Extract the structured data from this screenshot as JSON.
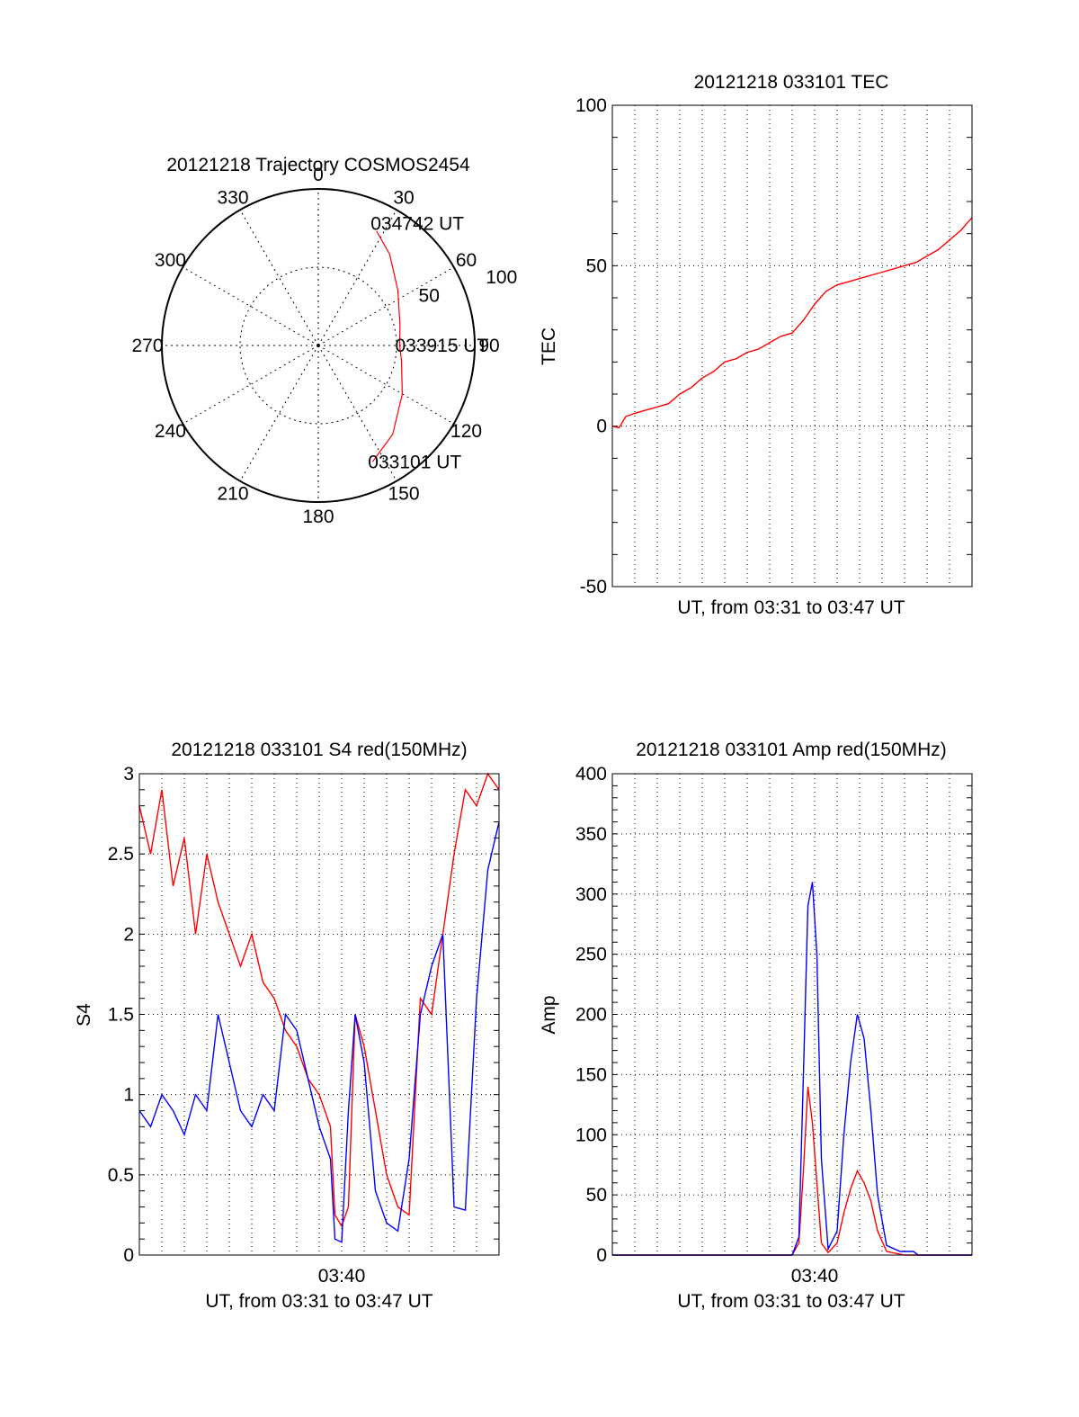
{
  "figure": {
    "colors": {
      "red": "#ff0000",
      "blue": "#0000ff",
      "frame": "#000000",
      "grid": "#000000"
    }
  },
  "chart_data": [
    {
      "type": "polar",
      "title": "20121218 Trajectory COSMOS2454",
      "angle_labels": [
        "0",
        "30",
        "60",
        "90",
        "120",
        "150",
        "180",
        "210",
        "240",
        "270",
        "300",
        "330"
      ],
      "radial_labels": [
        "50",
        "100"
      ],
      "radial_max": 100,
      "grid": true,
      "series": [
        {
          "color": "#ff0000",
          "points": [
            {
              "azimuth": 155,
              "elevation": 18
            },
            {
              "azimuth": 140,
              "elevation": 26
            },
            {
              "azimuth": 120,
              "elevation": 38
            },
            {
              "azimuth": 100,
              "elevation": 46
            },
            {
              "azimuth": 90,
              "elevation": 48
            },
            {
              "azimuth": 75,
              "elevation": 46
            },
            {
              "azimuth": 55,
              "elevation": 38
            },
            {
              "azimuth": 38,
              "elevation": 26
            },
            {
              "azimuth": 27,
              "elevation": 18
            }
          ]
        }
      ],
      "annotations": [
        {
          "text": "034742 UT",
          "azimuth": 25,
          "elevation": 14
        },
        {
          "text": "033915 UT",
          "azimuth": 90,
          "elevation": 48
        },
        {
          "text": "033101 UT",
          "azimuth": 155,
          "elevation": 18
        }
      ]
    },
    {
      "type": "line",
      "title": "20121218 033101 TEC",
      "xlabel": "UT, from 03:31 to 03:47 UT",
      "ylabel": "TEC",
      "xlim": [
        0,
        16
      ],
      "ylim": [
        -50,
        100
      ],
      "yticks": [
        "100",
        "50",
        "0",
        "-50"
      ],
      "ytick_values": [
        100,
        50,
        0,
        -50
      ],
      "grid": true,
      "series": [
        {
          "color": "#ff0000",
          "x": [
            0,
            0.3,
            0.6,
            1.0,
            1.5,
            2.0,
            2.5,
            3.0,
            3.5,
            4.0,
            4.5,
            5.0,
            5.5,
            6.0,
            6.5,
            7.0,
            7.5,
            8.0,
            8.5,
            9.0,
            9.5,
            10.0,
            10.5,
            11.0,
            11.5,
            12.0,
            12.5,
            13.0,
            13.5,
            14.0,
            14.5,
            15.0,
            15.5,
            16.0
          ],
          "y": [
            0,
            -0.5,
            3,
            4,
            5,
            6,
            7,
            10,
            12,
            15,
            17,
            20,
            21,
            23,
            24,
            26,
            28,
            29,
            33,
            38,
            42,
            44,
            45,
            46,
            47,
            48,
            49,
            50,
            51,
            53,
            55,
            58,
            61,
            65
          ]
        }
      ]
    },
    {
      "type": "line",
      "title": "20121218 033101 S4 red(150MHz)",
      "xlabel": "UT, from 03:31 to 03:47 UT",
      "ylabel": "S4",
      "xlim": [
        0,
        16
      ],
      "ylim": [
        0,
        3
      ],
      "xticks": [
        "03:40"
      ],
      "xtick_values": [
        9
      ],
      "yticks": [
        "3",
        "2.5",
        "2",
        "1.5",
        "1",
        "0.5",
        "0"
      ],
      "ytick_values": [
        3,
        2.5,
        2,
        1.5,
        1,
        0.5,
        0
      ],
      "grid": true,
      "series": [
        {
          "color": "#ff0000",
          "x": [
            0,
            0.5,
            1.0,
            1.5,
            2.0,
            2.5,
            3.0,
            3.5,
            4.0,
            4.5,
            5.0,
            5.5,
            6.0,
            6.5,
            7.0,
            7.5,
            8.0,
            8.5,
            8.7,
            9.0,
            9.3,
            9.6,
            10.0,
            10.5,
            11.0,
            11.5,
            12.0,
            12.5,
            13.0,
            13.5,
            14.0,
            14.5,
            15.0,
            15.5,
            16.0
          ],
          "y": [
            2.8,
            2.5,
            2.9,
            2.3,
            2.6,
            2.0,
            2.5,
            2.2,
            2.0,
            1.8,
            2.0,
            1.7,
            1.6,
            1.4,
            1.3,
            1.1,
            1.0,
            0.8,
            0.25,
            0.18,
            0.3,
            1.5,
            1.3,
            0.9,
            0.5,
            0.3,
            0.25,
            1.6,
            1.5,
            2.0,
            2.5,
            2.9,
            2.8,
            3.0,
            2.9
          ]
        },
        {
          "color": "#0000ff",
          "x": [
            0,
            0.5,
            1.0,
            1.5,
            2.0,
            2.5,
            3.0,
            3.5,
            4.0,
            4.5,
            5.0,
            5.5,
            6.0,
            6.5,
            7.0,
            7.5,
            8.0,
            8.5,
            8.7,
            9.0,
            9.3,
            9.6,
            10.0,
            10.5,
            11.0,
            11.5,
            12.0,
            12.5,
            13.0,
            13.5,
            14.0,
            14.5,
            15.0,
            15.5,
            16.0
          ],
          "y": [
            0.9,
            0.8,
            1.0,
            0.9,
            0.75,
            1.0,
            0.9,
            1.5,
            1.2,
            0.9,
            0.8,
            1.0,
            0.9,
            1.5,
            1.4,
            1.1,
            0.8,
            0.6,
            0.1,
            0.08,
            0.9,
            1.5,
            1.2,
            0.4,
            0.2,
            0.15,
            0.6,
            1.5,
            1.8,
            2.0,
            0.3,
            0.28,
            1.6,
            2.4,
            2.7
          ]
        }
      ]
    },
    {
      "type": "line",
      "title": "20121218 033101 Amp red(150MHz)",
      "xlabel": "UT, from 03:31 to 03:47 UT",
      "ylabel": "Amp",
      "xlim": [
        0,
        16
      ],
      "ylim": [
        0,
        400
      ],
      "xticks": [
        "03:40"
      ],
      "xtick_values": [
        9
      ],
      "yticks": [
        "400",
        "350",
        "300",
        "250",
        "200",
        "150",
        "100",
        "50",
        "0"
      ],
      "ytick_values": [
        400,
        350,
        300,
        250,
        200,
        150,
        100,
        50,
        0
      ],
      "grid": true,
      "series": [
        {
          "color": "#ff0000",
          "x": [
            0,
            4.0,
            8.0,
            8.3,
            8.5,
            8.7,
            8.9,
            9.1,
            9.3,
            9.6,
            10.0,
            10.3,
            10.6,
            10.9,
            11.2,
            11.5,
            11.8,
            12.2,
            13.0,
            16.0
          ],
          "y": [
            0,
            0,
            0,
            10,
            70,
            140,
            110,
            60,
            10,
            2,
            10,
            35,
            55,
            70,
            60,
            45,
            20,
            3,
            0,
            0
          ]
        },
        {
          "color": "#0000ff",
          "x": [
            0,
            4.0,
            8.0,
            8.3,
            8.5,
            8.7,
            8.9,
            9.1,
            9.3,
            9.6,
            10.0,
            10.3,
            10.6,
            10.9,
            11.2,
            11.5,
            11.8,
            12.2,
            12.8,
            13.4,
            13.6,
            16.0
          ],
          "y": [
            0,
            0,
            0,
            15,
            150,
            290,
            310,
            250,
            80,
            5,
            20,
            100,
            160,
            200,
            180,
            120,
            50,
            8,
            3,
            3,
            0,
            0
          ]
        }
      ]
    }
  ]
}
